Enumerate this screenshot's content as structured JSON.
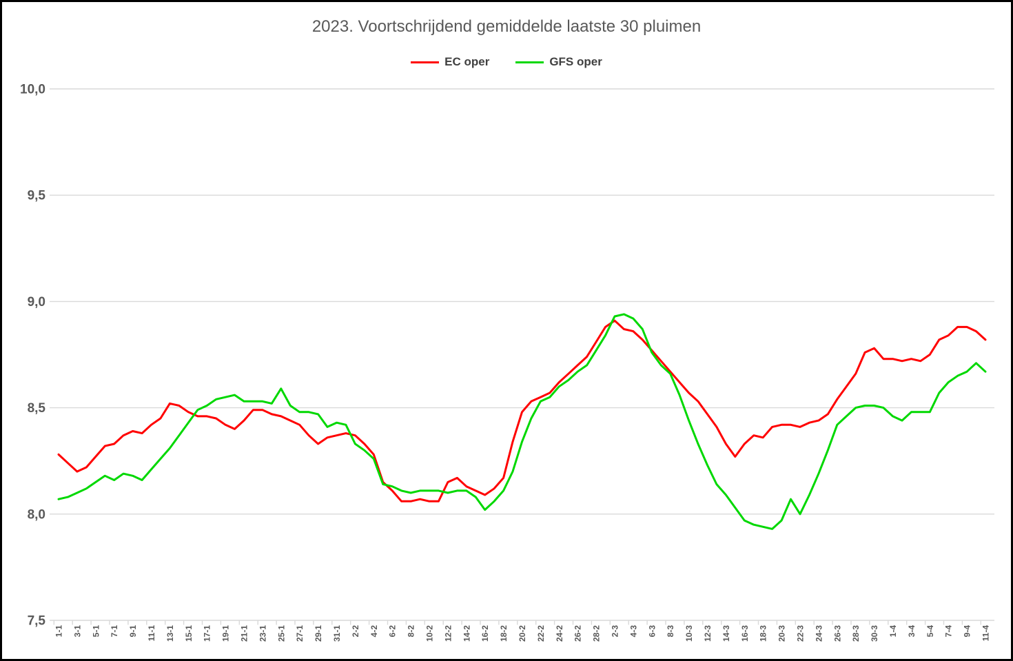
{
  "chart_data": {
    "type": "line",
    "title": "2023. Voortschrijdend gemiddelde laatste 30 pluimen",
    "legend_position": "top-center",
    "grid": "horizontal",
    "colors": {
      "text": "#595959",
      "gridline": "#D9D9D9",
      "tick": "#D9D9D9",
      "border": "#000000"
    },
    "y_axis": {
      "min": 7.5,
      "max": 10.0,
      "tick_step": 0.5,
      "ticks": [
        {
          "value": 10.0,
          "label": "10,0"
        },
        {
          "value": 9.5,
          "label": "9,5"
        },
        {
          "value": 9.0,
          "label": "9,0"
        },
        {
          "value": 8.5,
          "label": "8,5"
        },
        {
          "value": 8.0,
          "label": "8,0"
        },
        {
          "value": 7.5,
          "label": "7,5"
        }
      ]
    },
    "x_axis": {
      "label_every": 2,
      "categories": [
        "1-1",
        "2-1",
        "3-1",
        "4-1",
        "5-1",
        "6-1",
        "7-1",
        "8-1",
        "9-1",
        "10-1",
        "11-1",
        "12-1",
        "13-1",
        "14-1",
        "15-1",
        "16-1",
        "17-1",
        "18-1",
        "19-1",
        "20-1",
        "21-1",
        "22-1",
        "23-1",
        "24-1",
        "25-1",
        "26-1",
        "27-1",
        "28-1",
        "29-1",
        "30-1",
        "31-1",
        "1-2",
        "2-2",
        "3-2",
        "4-2",
        "5-2",
        "6-2",
        "7-2",
        "8-2",
        "9-2",
        "10-2",
        "11-2",
        "12-2",
        "13-2",
        "14-2",
        "15-2",
        "16-2",
        "17-2",
        "18-2",
        "19-2",
        "20-2",
        "21-2",
        "22-2",
        "23-2",
        "24-2",
        "25-2",
        "26-2",
        "27-2",
        "28-2",
        "1-3",
        "2-3",
        "3-3",
        "4-3",
        "5-3",
        "6-3",
        "7-3",
        "8-3",
        "9-3",
        "10-3",
        "11-3",
        "12-3",
        "13-3",
        "14-3",
        "15-3",
        "16-3",
        "17-3",
        "18-3",
        "19-3",
        "20-3",
        "21-3",
        "22-3",
        "23-3",
        "24-3",
        "25-3",
        "26-3",
        "27-3",
        "28-3",
        "29-3",
        "30-3",
        "31-3",
        "1-4",
        "2-4",
        "3-4",
        "4-4",
        "5-4",
        "6-4",
        "7-4",
        "8-4",
        "9-4",
        "10-4",
        "11-4"
      ]
    },
    "series": [
      {
        "name": "EC oper",
        "color": "#FF0000",
        "values": [
          8.28,
          8.24,
          8.2,
          8.22,
          8.27,
          8.32,
          8.33,
          8.37,
          8.39,
          8.38,
          8.42,
          8.45,
          8.52,
          8.51,
          8.48,
          8.46,
          8.46,
          8.45,
          8.42,
          8.4,
          8.44,
          8.49,
          8.49,
          8.47,
          8.46,
          8.44,
          8.42,
          8.37,
          8.33,
          8.36,
          8.37,
          8.38,
          8.37,
          8.33,
          8.28,
          8.15,
          8.11,
          8.06,
          8.06,
          8.07,
          8.06,
          8.06,
          8.15,
          8.17,
          8.13,
          8.11,
          8.09,
          8.12,
          8.17,
          8.34,
          8.48,
          8.53,
          8.55,
          8.57,
          8.62,
          8.66,
          8.7,
          8.74,
          8.81,
          8.88,
          8.91,
          8.87,
          8.86,
          8.82,
          8.77,
          8.72,
          8.67,
          8.62,
          8.57,
          8.53,
          8.47,
          8.41,
          8.33,
          8.27,
          8.33,
          8.37,
          8.36,
          8.41,
          8.42,
          8.42,
          8.41,
          8.43,
          8.44,
          8.47,
          8.54,
          8.6,
          8.66,
          8.76,
          8.78,
          8.73,
          8.73,
          8.72,
          8.73,
          8.72,
          8.75,
          8.82,
          8.84,
          8.88,
          8.88,
          8.86,
          8.82
        ]
      },
      {
        "name": "GFS oper",
        "color": "#00D800",
        "values": [
          8.07,
          8.08,
          8.1,
          8.12,
          8.15,
          8.18,
          8.16,
          8.19,
          8.18,
          8.16,
          8.21,
          8.26,
          8.31,
          8.37,
          8.43,
          8.49,
          8.51,
          8.54,
          8.55,
          8.56,
          8.53,
          8.53,
          8.53,
          8.52,
          8.59,
          8.51,
          8.48,
          8.48,
          8.47,
          8.41,
          8.43,
          8.42,
          8.33,
          8.3,
          8.26,
          8.14,
          8.13,
          8.11,
          8.1,
          8.11,
          8.11,
          8.11,
          8.1,
          8.11,
          8.11,
          8.08,
          8.02,
          8.06,
          8.11,
          8.2,
          8.34,
          8.45,
          8.53,
          8.55,
          8.6,
          8.63,
          8.67,
          8.7,
          8.77,
          8.84,
          8.93,
          8.94,
          8.92,
          8.87,
          8.76,
          8.7,
          8.66,
          8.56,
          8.44,
          8.33,
          8.23,
          8.14,
          8.09,
          8.03,
          7.97,
          7.95,
          7.94,
          7.93,
          7.97,
          8.07,
          8.0,
          8.09,
          8.19,
          8.3,
          8.42,
          8.46,
          8.5,
          8.51,
          8.51,
          8.5,
          8.46,
          8.44,
          8.48,
          8.48,
          8.48,
          8.57,
          8.62,
          8.65,
          8.67,
          8.71,
          8.67
        ]
      }
    ]
  }
}
